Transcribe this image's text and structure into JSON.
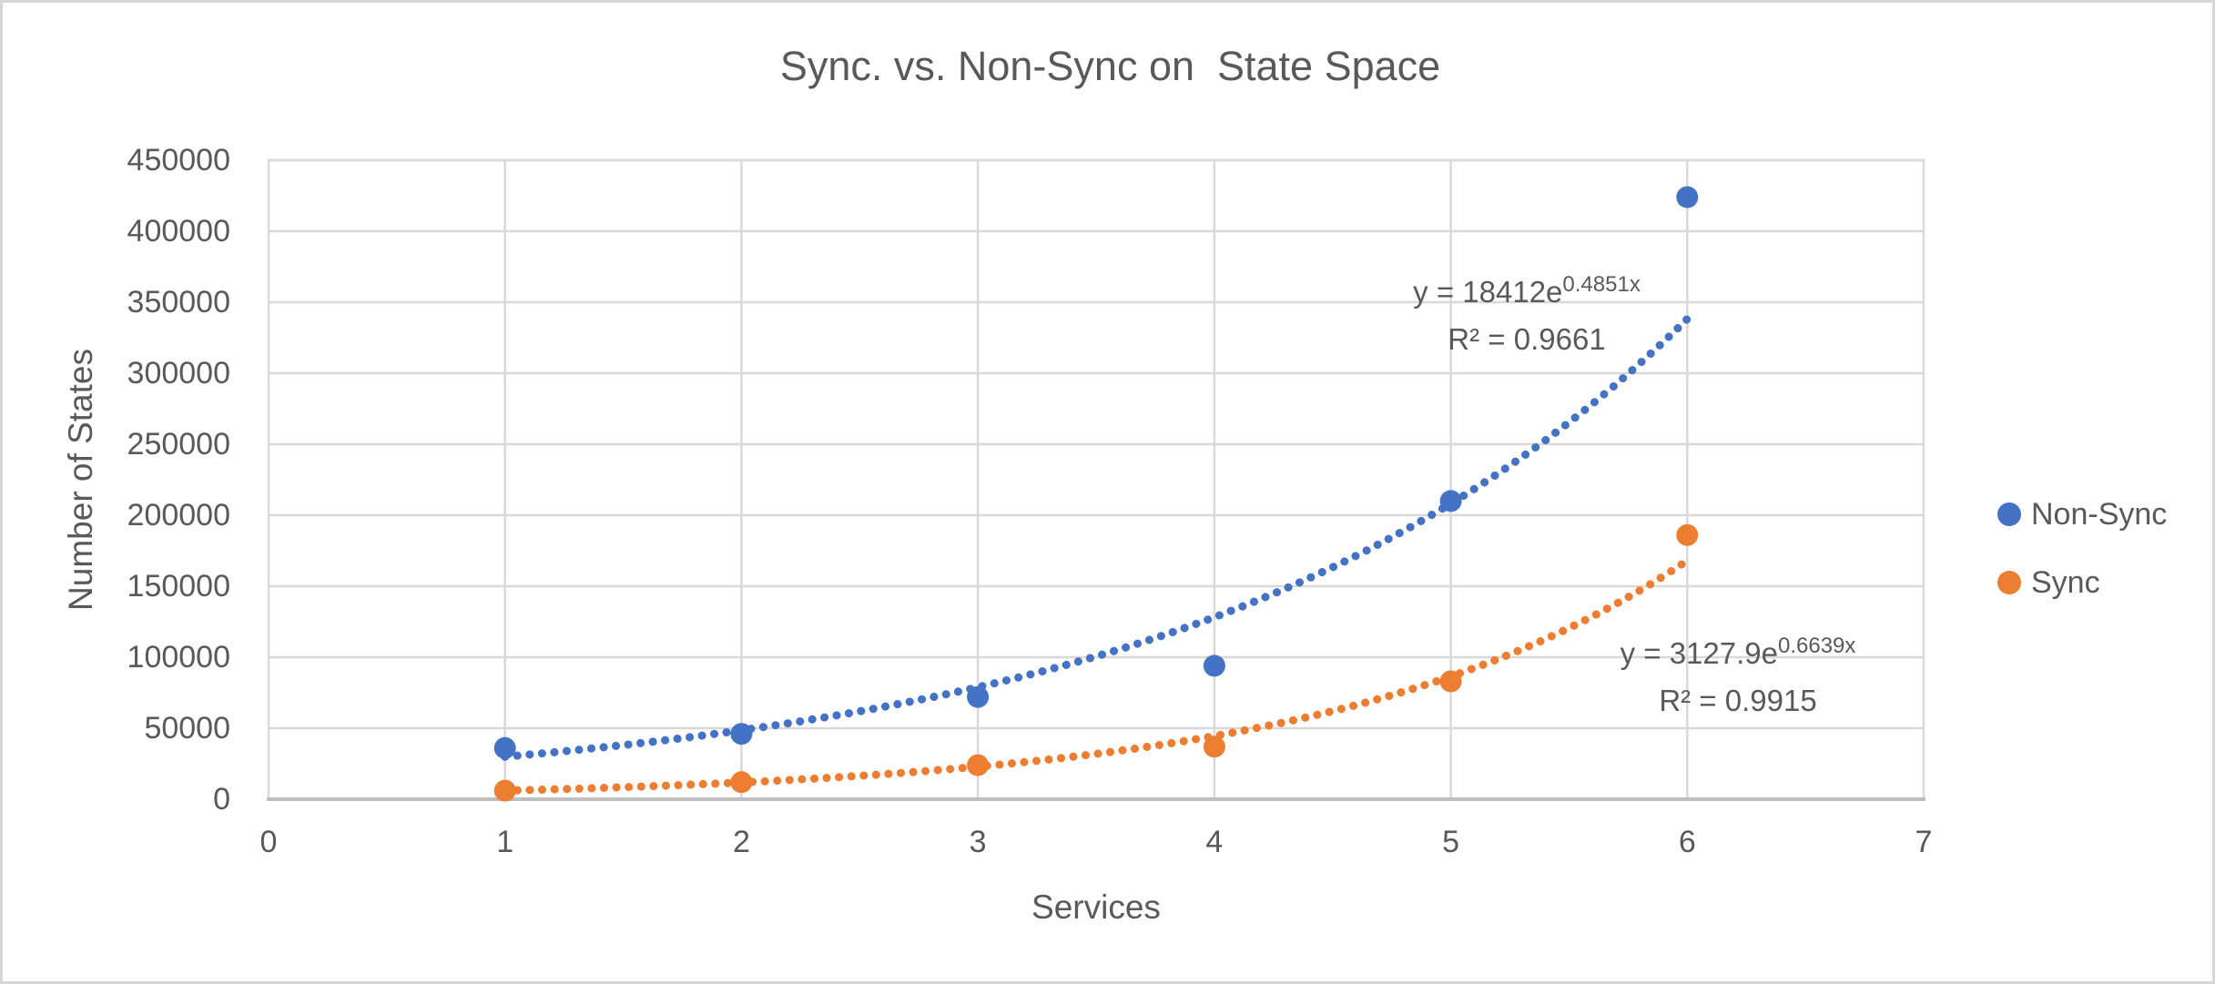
{
  "colors": {
    "text": "#595959",
    "gridline": "#D9D9D9",
    "axis_line": "#BFBFBF",
    "frame_border": "#D6D6D6",
    "background": "#FFFFFF",
    "non_sync_blue": "#4472C4",
    "sync_orange": "#ED7D31"
  },
  "chart_data": {
    "type": "scatter",
    "title": "Sync. vs. Non-Sync on  State Space",
    "xlabel": "Services",
    "ylabel": "Number of States",
    "xlim": [
      0,
      7
    ],
    "ylim": [
      0,
      450000
    ],
    "grid": true,
    "x_ticks": [
      0,
      1,
      2,
      3,
      4,
      5,
      6,
      7
    ],
    "x_tick_labels": [
      "0",
      "1",
      "2",
      "3",
      "4",
      "5",
      "6",
      "7"
    ],
    "y_ticks": [
      0,
      50000,
      100000,
      150000,
      200000,
      250000,
      300000,
      350000,
      400000,
      450000
    ],
    "y_tick_labels": [
      "0",
      "50000",
      "100000",
      "150000",
      "200000",
      "250000",
      "300000",
      "350000",
      "400000",
      "450000"
    ],
    "series": [
      {
        "name": "Non-Sync",
        "color": "#4472C4",
        "marker": "circle",
        "x": [
          1,
          2,
          3,
          4,
          5,
          6
        ],
        "y": [
          36000,
          46000,
          72000,
          94000,
          210000,
          424000
        ],
        "trendline": {
          "type": "exponential",
          "style": "dotted",
          "a": 18412,
          "b": 0.4851,
          "x_range": [
            1,
            6
          ],
          "equation_base": "y = 18412e",
          "equation_exponent": "0.4851x",
          "r2_label": "R² = 0.9661"
        }
      },
      {
        "name": "Sync",
        "color": "#ED7D31",
        "marker": "circle",
        "x": [
          1,
          2,
          3,
          4,
          5,
          6
        ],
        "y": [
          6000,
          12000,
          24000,
          37000,
          83000,
          186000
        ],
        "trendline": {
          "type": "exponential",
          "style": "dotted",
          "a": 3127.9,
          "b": 0.6639,
          "x_range": [
            1,
            6
          ],
          "equation_base": "y = 3127.9e",
          "equation_exponent": "0.6639x",
          "r2_label": "R² = 0.9915"
        }
      }
    ],
    "legend": {
      "position": "right",
      "items": [
        {
          "label": "Non-Sync",
          "color": "#4472C4"
        },
        {
          "label": "Sync",
          "color": "#ED7D31"
        }
      ]
    }
  }
}
